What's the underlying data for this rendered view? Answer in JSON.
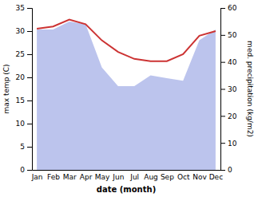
{
  "chart_data": {
    "type": "line",
    "categories": [
      "Jan",
      "Feb",
      "Mar",
      "Apr",
      "May",
      "Jun",
      "Jul",
      "Aug",
      "Sep",
      "Oct",
      "Nov",
      "Dec"
    ],
    "series": [
      {
        "type": "area",
        "axis": "y2",
        "color": "#b0baea",
        "values": [
          52,
          52,
          55,
          54,
          38,
          31,
          31,
          35,
          34,
          33,
          48,
          52
        ]
      },
      {
        "type": "line",
        "color": "#cc3333",
        "values": [
          30.5,
          31.0,
          32.5,
          31.5,
          28.0,
          25.5,
          24.0,
          23.5,
          23.5,
          25.0,
          29.0,
          30.0
        ]
      }
    ],
    "x_label": "date (month)",
    "y_label": "max temp (C)",
    "y2_label": "med. precipitation (kg/m2)",
    "ylim": [
      0,
      35
    ],
    "yticks": [
      0,
      5,
      10,
      15,
      20,
      25,
      30,
      35
    ],
    "y2lim": [
      0,
      60
    ],
    "y2ticks": [
      0,
      10,
      20,
      30,
      40,
      50,
      60
    ],
    "grid": false
  }
}
